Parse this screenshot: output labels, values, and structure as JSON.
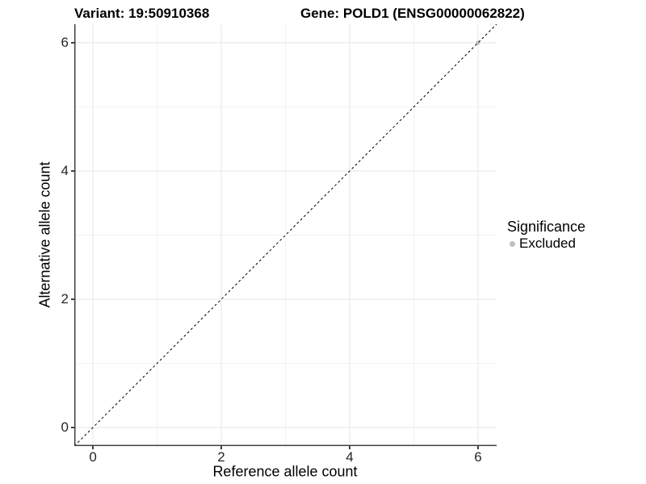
{
  "titles": {
    "variant": "Variant: 19:50910368",
    "gene": "Gene: POLD1 (ENSG00000062822)"
  },
  "axes": {
    "x": {
      "label": "Reference allele count"
    },
    "y": {
      "label": "Alternative allele count"
    }
  },
  "legend": {
    "title": "Significance",
    "items": [
      {
        "label": "Excluded",
        "color": "#bfbfbf"
      }
    ]
  },
  "colors": {
    "grid_major": "#e6e6e6",
    "grid_minor": "#f2f2f2",
    "axis_line": "#404040",
    "reference_line": "#000000",
    "point_excluded": "#bfbfbf",
    "background": "#ffffff"
  },
  "chart_data": {
    "type": "scatter",
    "title": "Variant: 19:50910368   Gene: POLD1 (ENSG00000062822)",
    "xlabel": "Reference allele count",
    "ylabel": "Alternative allele count",
    "xlim": [
      -0.29,
      6.29
    ],
    "ylim": [
      -0.29,
      6.29
    ],
    "x_ticks": [
      0,
      2,
      4,
      6
    ],
    "y_ticks": [
      0,
      2,
      4,
      6
    ],
    "x_minor_ticks": [
      1,
      3,
      5
    ],
    "y_minor_ticks": [
      1,
      3,
      5
    ],
    "grid": true,
    "legend_position": "right",
    "series": [
      {
        "name": "Excluded",
        "color": "#bfbfbf",
        "points": [
          [
            6,
            6
          ]
        ]
      }
    ],
    "reference_line": {
      "type": "identity",
      "style": "dashed",
      "from": [
        -0.29,
        -0.29
      ],
      "to": [
        6.29,
        6.29
      ]
    }
  }
}
